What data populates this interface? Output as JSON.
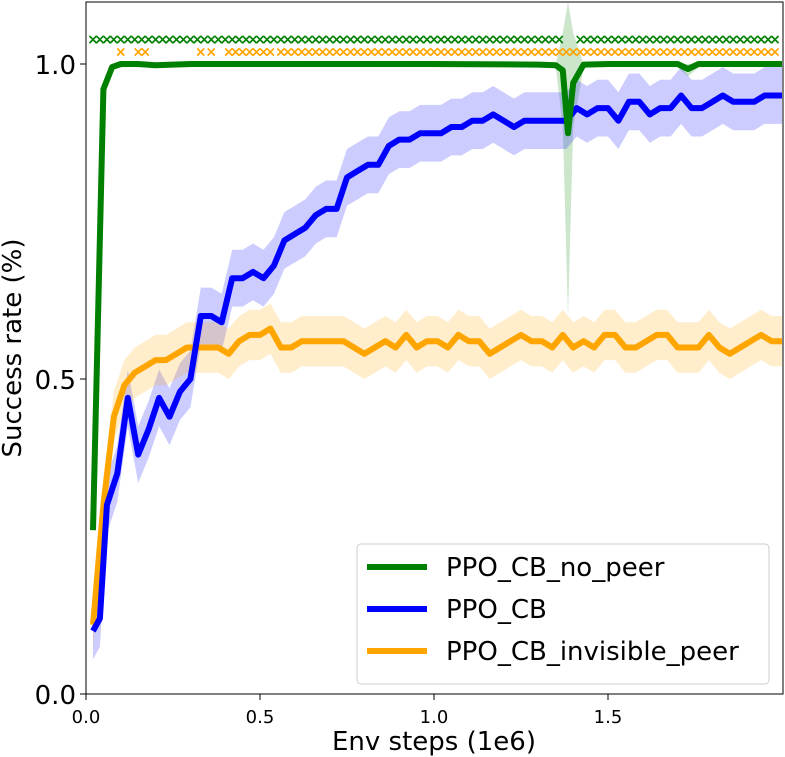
{
  "chart_data": {
    "type": "line",
    "title": "",
    "xlabel": "Env steps (1e6)",
    "ylabel": "Success rate (%)",
    "xlim": [
      0,
      2.0
    ],
    "ylim": [
      0,
      1.1
    ],
    "x_ticks": [
      0.0,
      0.5,
      1.0,
      1.5
    ],
    "x_tick_labels": [
      "0.0",
      "0.5",
      "1.0",
      "1.5"
    ],
    "y_ticks": [
      0.0,
      0.5,
      1.0
    ],
    "y_tick_labels": [
      "0.0",
      "0.5",
      "1.0"
    ],
    "grid": false,
    "legend_position": "bottom-right",
    "series": [
      {
        "name": "PPO_CB_no_peer",
        "color": "#008000",
        "x": [
          0.02,
          0.05,
          0.075,
          0.1,
          0.15,
          0.2,
          0.3,
          0.5,
          1.0,
          1.3,
          1.35,
          1.37,
          1.385,
          1.4,
          1.43,
          1.5,
          1.7,
          1.73,
          1.76,
          1.8,
          2.0
        ],
        "values": [
          0.26,
          0.96,
          0.995,
          1.0,
          1.0,
          0.998,
          1.0,
          1.0,
          1.0,
          0.999,
          0.998,
          0.99,
          0.89,
          0.97,
          0.999,
          1.0,
          1.0,
          0.992,
          1.0,
          1.0,
          1.0
        ],
        "band_lower": [
          0.26,
          0.95,
          0.99,
          0.995,
          0.995,
          0.995,
          0.995,
          0.995,
          0.995,
          0.995,
          0.995,
          0.9,
          0.6,
          0.9,
          0.995,
          0.995,
          0.995,
          0.98,
          0.995,
          0.995,
          0.995
        ],
        "band_upper": [
          0.26,
          0.97,
          1.0,
          1.0,
          1.0,
          1.0,
          1.0,
          1.0,
          1.0,
          1.0,
          1.0,
          1.05,
          1.1,
          1.05,
          1.0,
          1.0,
          1.0,
          1.0,
          1.0,
          1.0,
          1.0
        ],
        "marker_y": 1.04,
        "marker_x": [
          0.02,
          0.04,
          0.06,
          0.08,
          0.1,
          0.12,
          0.14,
          0.16,
          0.18,
          0.2,
          0.22,
          0.24,
          0.26,
          0.28,
          0.3,
          0.32,
          0.34,
          0.36,
          0.38,
          0.4,
          0.42,
          0.44,
          0.46,
          0.48,
          0.5,
          0.52,
          0.54,
          0.56,
          0.58,
          0.6,
          0.62,
          0.64,
          0.66,
          0.68,
          0.7,
          0.72,
          0.74,
          0.76,
          0.78,
          0.8,
          0.82,
          0.84,
          0.86,
          0.88,
          0.9,
          0.92,
          0.94,
          0.96,
          0.98,
          1.0,
          1.02,
          1.04,
          1.06,
          1.08,
          1.1,
          1.12,
          1.14,
          1.16,
          1.18,
          1.2,
          1.22,
          1.24,
          1.26,
          1.28,
          1.3,
          1.32,
          1.34,
          1.36,
          1.42,
          1.44,
          1.46,
          1.48,
          1.5,
          1.52,
          1.54,
          1.56,
          1.58,
          1.6,
          1.62,
          1.64,
          1.66,
          1.68,
          1.7,
          1.72,
          1.74,
          1.76,
          1.78,
          1.8,
          1.82,
          1.84,
          1.86,
          1.88,
          1.9,
          1.92,
          1.94,
          1.96,
          1.98
        ]
      },
      {
        "name": "PPO_CB",
        "color": "#0000ff",
        "x": [
          0.02,
          0.04,
          0.06,
          0.09,
          0.12,
          0.15,
          0.18,
          0.21,
          0.24,
          0.27,
          0.3,
          0.33,
          0.36,
          0.39,
          0.42,
          0.45,
          0.48,
          0.51,
          0.54,
          0.57,
          0.6,
          0.63,
          0.66,
          0.69,
          0.72,
          0.75,
          0.78,
          0.81,
          0.84,
          0.87,
          0.9,
          0.93,
          0.96,
          0.99,
          1.02,
          1.05,
          1.08,
          1.11,
          1.14,
          1.17,
          1.2,
          1.23,
          1.26,
          1.29,
          1.32,
          1.35,
          1.38,
          1.41,
          1.44,
          1.47,
          1.5,
          1.53,
          1.56,
          1.59,
          1.62,
          1.65,
          1.68,
          1.71,
          1.74,
          1.77,
          1.8,
          1.83,
          1.86,
          1.89,
          1.92,
          1.95,
          1.98,
          2.0
        ],
        "values": [
          0.1,
          0.12,
          0.3,
          0.35,
          0.47,
          0.38,
          0.42,
          0.47,
          0.44,
          0.48,
          0.5,
          0.6,
          0.6,
          0.59,
          0.66,
          0.66,
          0.67,
          0.66,
          0.68,
          0.72,
          0.73,
          0.74,
          0.76,
          0.77,
          0.77,
          0.82,
          0.83,
          0.84,
          0.84,
          0.87,
          0.88,
          0.88,
          0.89,
          0.89,
          0.89,
          0.9,
          0.9,
          0.91,
          0.91,
          0.92,
          0.91,
          0.9,
          0.91,
          0.91,
          0.91,
          0.91,
          0.91,
          0.93,
          0.92,
          0.93,
          0.93,
          0.91,
          0.94,
          0.94,
          0.92,
          0.93,
          0.93,
          0.95,
          0.93,
          0.93,
          0.94,
          0.95,
          0.94,
          0.94,
          0.94,
          0.95,
          0.95,
          0.95
        ],
        "band_half_width": 0.045
      },
      {
        "name": "PPO_CB_invisible_peer",
        "color": "#ffa500",
        "x": [
          0.02,
          0.05,
          0.08,
          0.11,
          0.14,
          0.17,
          0.2,
          0.23,
          0.26,
          0.29,
          0.32,
          0.35,
          0.38,
          0.41,
          0.44,
          0.47,
          0.5,
          0.53,
          0.56,
          0.59,
          0.62,
          0.65,
          0.68,
          0.71,
          0.74,
          0.77,
          0.8,
          0.83,
          0.86,
          0.89,
          0.92,
          0.95,
          0.98,
          1.01,
          1.04,
          1.07,
          1.1,
          1.13,
          1.16,
          1.19,
          1.22,
          1.25,
          1.28,
          1.31,
          1.34,
          1.37,
          1.4,
          1.43,
          1.46,
          1.49,
          1.52,
          1.55,
          1.58,
          1.61,
          1.64,
          1.67,
          1.7,
          1.73,
          1.76,
          1.79,
          1.82,
          1.85,
          1.88,
          1.91,
          1.94,
          1.97,
          2.0
        ],
        "values": [
          0.11,
          0.3,
          0.44,
          0.49,
          0.51,
          0.52,
          0.53,
          0.53,
          0.54,
          0.55,
          0.55,
          0.55,
          0.55,
          0.54,
          0.56,
          0.57,
          0.57,
          0.58,
          0.55,
          0.55,
          0.56,
          0.56,
          0.56,
          0.56,
          0.56,
          0.55,
          0.54,
          0.55,
          0.56,
          0.55,
          0.57,
          0.55,
          0.56,
          0.56,
          0.55,
          0.57,
          0.56,
          0.56,
          0.54,
          0.55,
          0.56,
          0.57,
          0.56,
          0.56,
          0.55,
          0.57,
          0.55,
          0.56,
          0.55,
          0.57,
          0.57,
          0.55,
          0.55,
          0.56,
          0.57,
          0.57,
          0.55,
          0.55,
          0.55,
          0.57,
          0.55,
          0.54,
          0.55,
          0.56,
          0.57,
          0.56,
          0.56
        ],
        "band_half_width": 0.04,
        "marker_y": 1.02,
        "marker_x": [
          0.1,
          0.15,
          0.17,
          0.33,
          0.36,
          0.41,
          0.43,
          0.45,
          0.47,
          0.49,
          0.51,
          0.53,
          0.56,
          0.58,
          0.6,
          0.62,
          0.64,
          0.66,
          0.68,
          0.7,
          0.72,
          0.74,
          0.76,
          0.78,
          0.8,
          0.82,
          0.84,
          0.86,
          0.88,
          0.9,
          0.92,
          0.94,
          0.96,
          0.98,
          1.0,
          1.02,
          1.04,
          1.06,
          1.08,
          1.1,
          1.12,
          1.14,
          1.16,
          1.18,
          1.2,
          1.22,
          1.24,
          1.26,
          1.28,
          1.3,
          1.32,
          1.34,
          1.36,
          1.38,
          1.4,
          1.42,
          1.44,
          1.46,
          1.48,
          1.5,
          1.52,
          1.54,
          1.56,
          1.58,
          1.6,
          1.62,
          1.64,
          1.66,
          1.68,
          1.7,
          1.72,
          1.74,
          1.76,
          1.78,
          1.8,
          1.82,
          1.84,
          1.86,
          1.88,
          1.9,
          1.92,
          1.94,
          1.96,
          1.98
        ]
      }
    ]
  }
}
